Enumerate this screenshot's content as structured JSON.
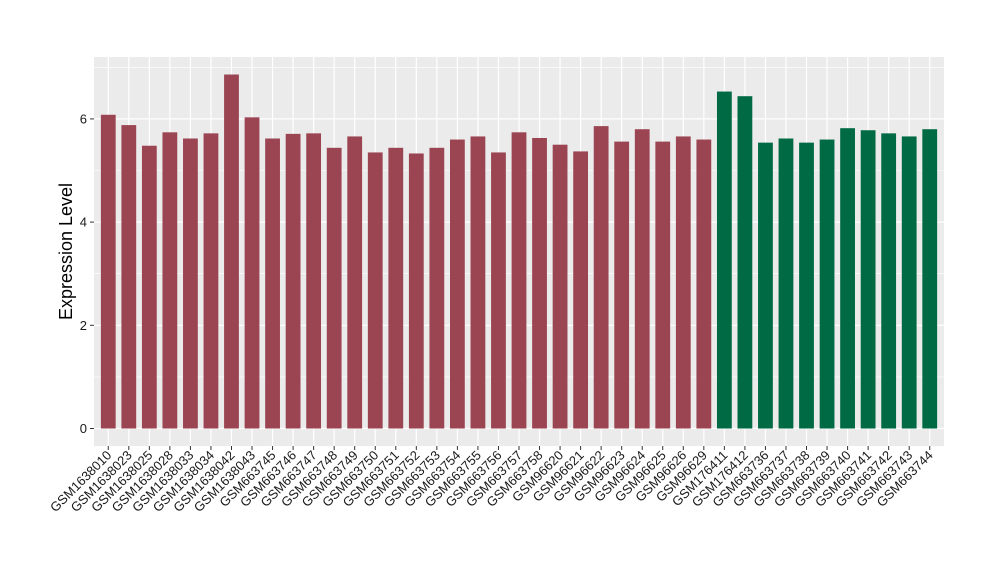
{
  "chart_data": {
    "type": "bar",
    "title": "",
    "xlabel": "",
    "ylabel": "Expression Level",
    "ylim": [
      0,
      7.2
    ],
    "yticks": [
      0,
      2,
      4,
      6
    ],
    "grid": true,
    "legend": "none",
    "colors": {
      "group1": "#9b4452",
      "group2": "#006a44",
      "panel": "#ebebeb",
      "grid": "#ffffff"
    },
    "categories": [
      "GSM1638010",
      "GSM1638023",
      "GSM1638025",
      "GSM1638028",
      "GSM1638033",
      "GSM1638034",
      "GSM1638042",
      "GSM1638043",
      "GSM663745",
      "GSM663746",
      "GSM663747",
      "GSM663748",
      "GSM663749",
      "GSM663750",
      "GSM663751",
      "GSM663752",
      "GSM663753",
      "GSM663754",
      "GSM663755",
      "GSM663756",
      "GSM663757",
      "GSM663758",
      "GSM96620",
      "GSM96621",
      "GSM96622",
      "GSM96623",
      "GSM96624",
      "GSM96625",
      "GSM96626",
      "GSM96629",
      "GSM176411",
      "GSM176412",
      "GSM663736",
      "GSM663737",
      "GSM663738",
      "GSM663739",
      "GSM663740",
      "GSM663741",
      "GSM663742",
      "GSM663743",
      "GSM663744"
    ],
    "values": [
      6.08,
      5.88,
      5.48,
      5.74,
      5.62,
      5.72,
      6.86,
      6.03,
      5.62,
      5.71,
      5.72,
      5.44,
      5.66,
      5.35,
      5.44,
      5.33,
      5.44,
      5.6,
      5.66,
      5.35,
      5.74,
      5.63,
      5.5,
      5.37,
      5.86,
      5.56,
      5.8,
      5.56,
      5.66,
      5.6,
      6.53,
      6.44,
      5.54,
      5.62,
      5.54,
      5.6,
      5.82,
      5.78,
      5.72,
      5.66,
      5.8
    ],
    "groups": [
      "group1",
      "group1",
      "group1",
      "group1",
      "group1",
      "group1",
      "group1",
      "group1",
      "group1",
      "group1",
      "group1",
      "group1",
      "group1",
      "group1",
      "group1",
      "group1",
      "group1",
      "group1",
      "group1",
      "group1",
      "group1",
      "group1",
      "group1",
      "group1",
      "group1",
      "group1",
      "group1",
      "group1",
      "group1",
      "group1",
      "group2",
      "group2",
      "group2",
      "group2",
      "group2",
      "group2",
      "group2",
      "group2",
      "group2",
      "group2",
      "group2"
    ]
  }
}
